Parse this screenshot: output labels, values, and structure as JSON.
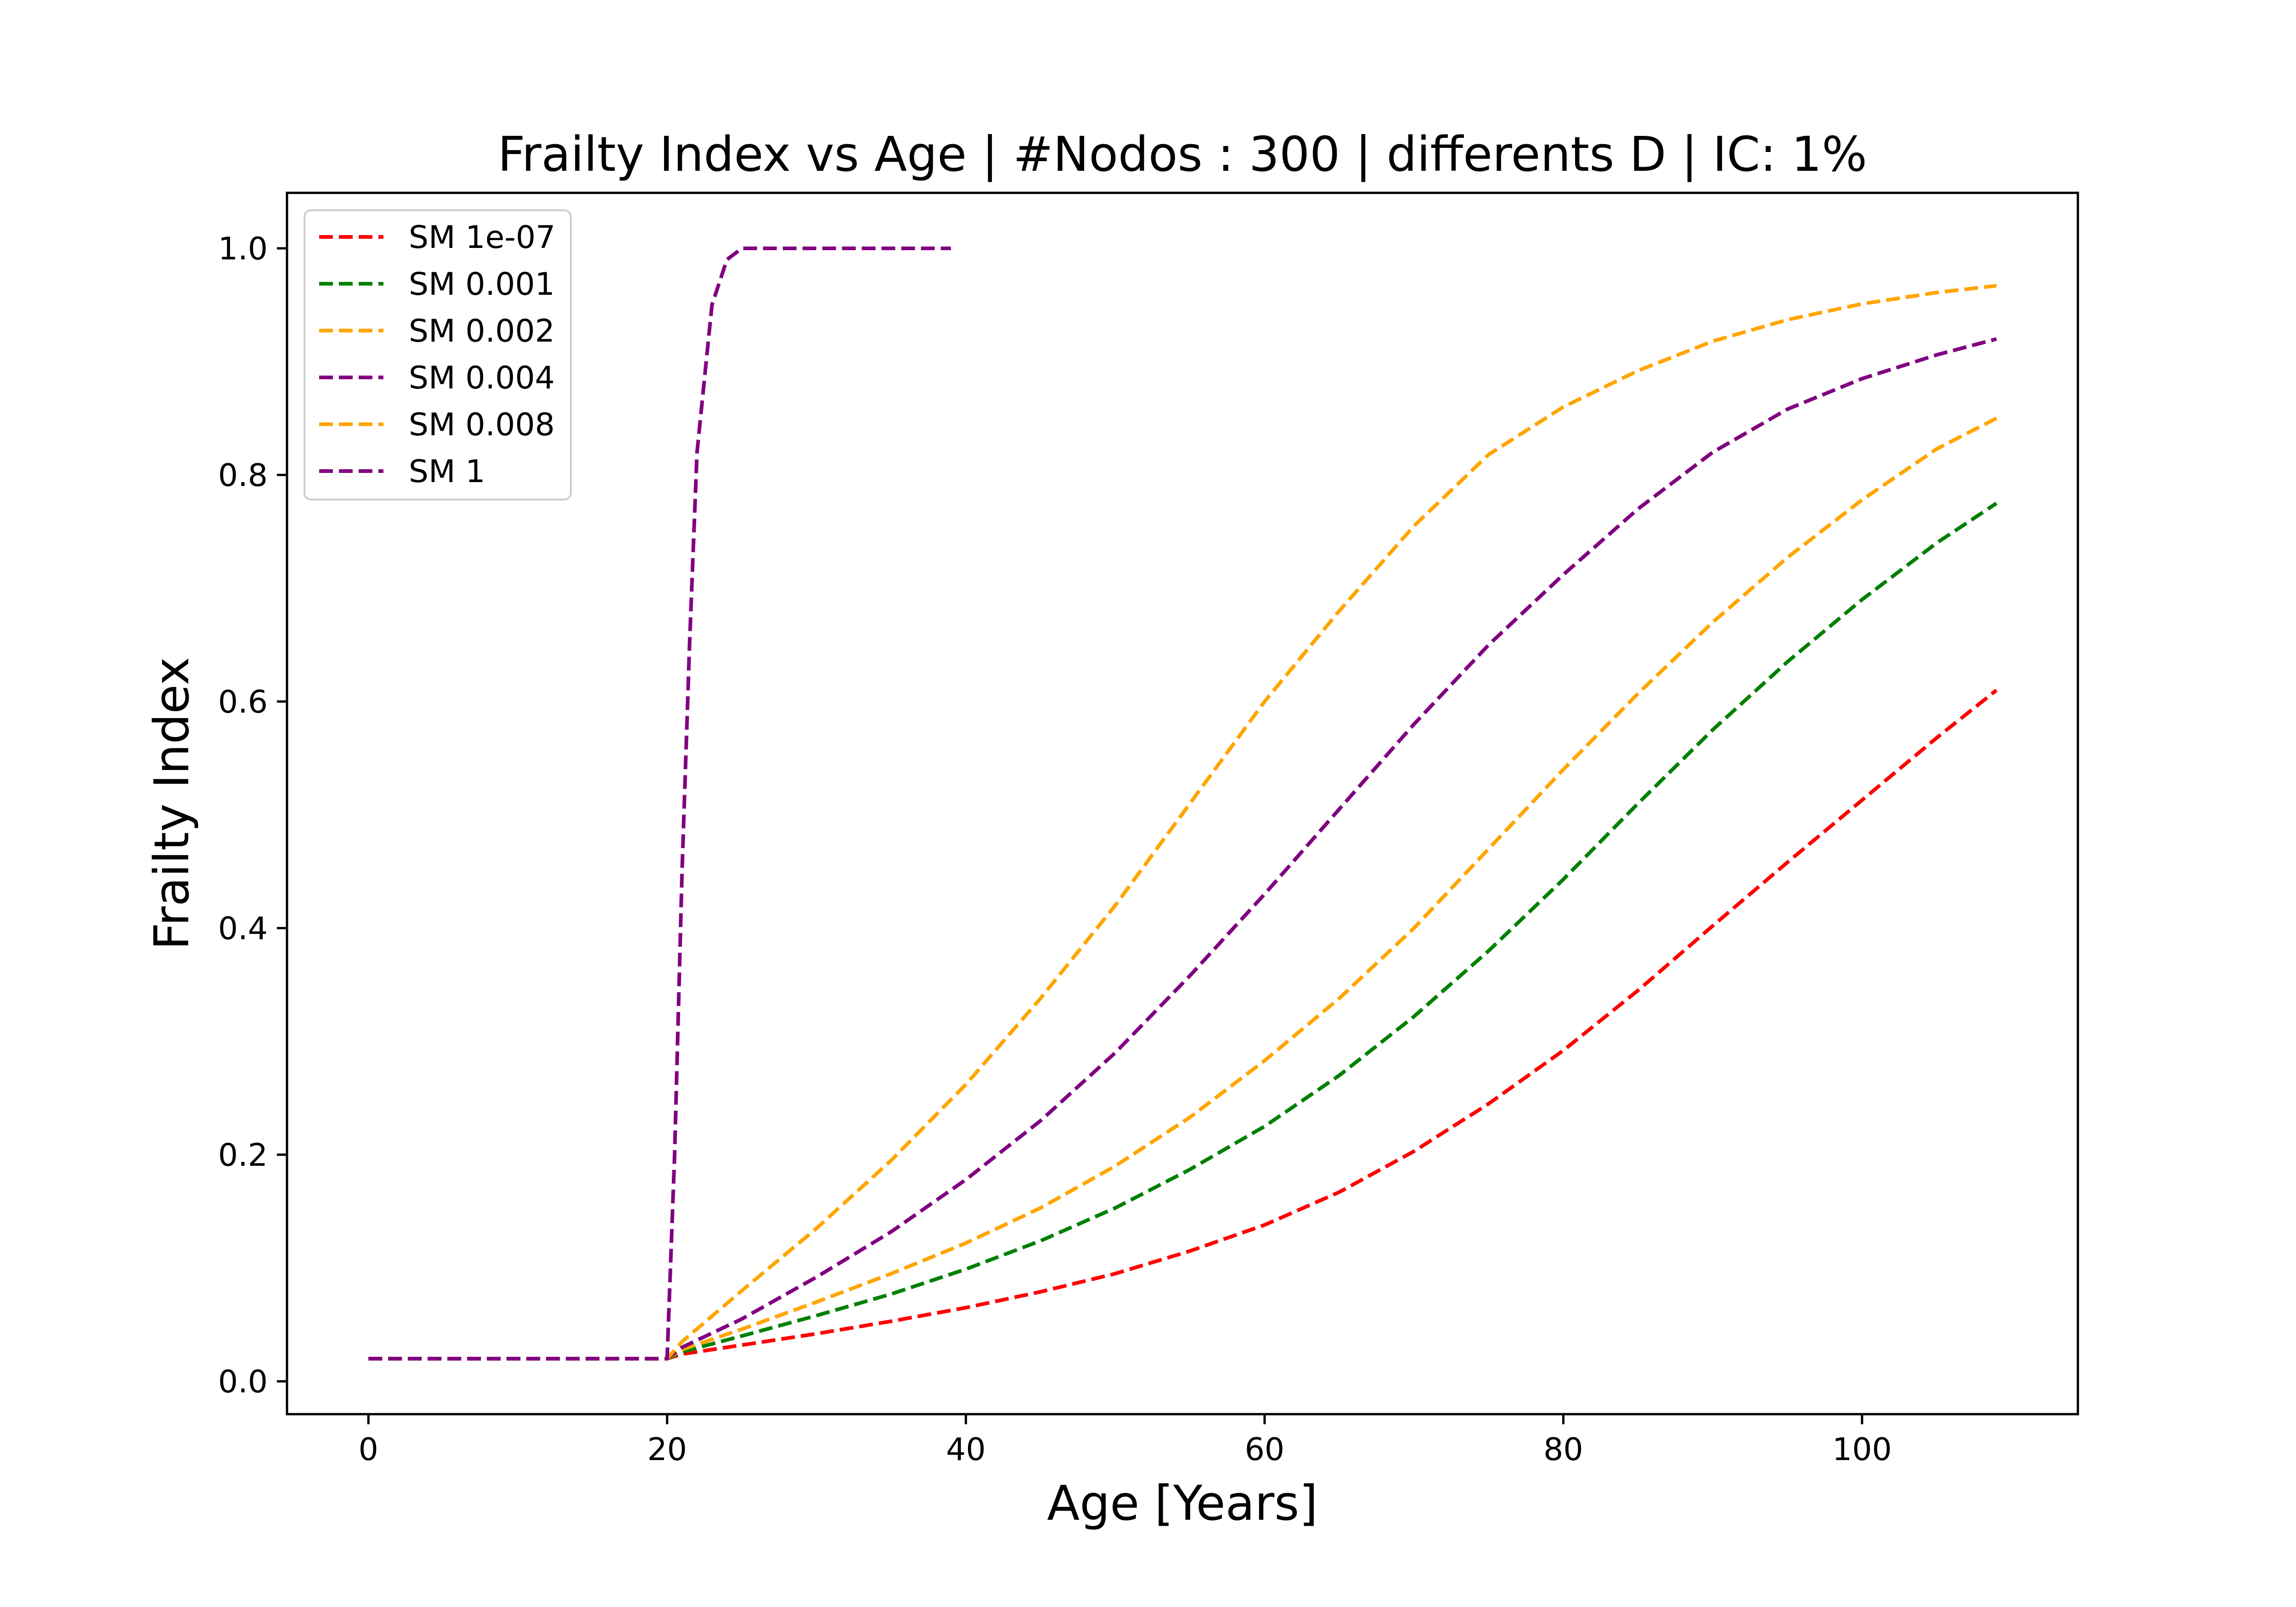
{
  "chart_data": {
    "type": "line",
    "title": "Frailty Index vs Age | #Nodos : 300 | differents D | IC: 1%",
    "xlabel": "Age [Years]",
    "ylabel": "Frailty Index",
    "xlim": [
      -5.45,
      114.45
    ],
    "ylim": [
      -0.029,
      1.049
    ],
    "x_ticks": [
      0,
      20,
      40,
      60,
      80,
      100
    ],
    "y_ticks": [
      0.0,
      0.2,
      0.4,
      0.6,
      0.8,
      1.0
    ],
    "x_tick_labels": [
      "0",
      "20",
      "40",
      "60",
      "80",
      "100"
    ],
    "y_tick_labels": [
      "0.0",
      "0.2",
      "0.4",
      "0.6",
      "0.8",
      "1.0"
    ],
    "grid": false,
    "legend_position": "top-left",
    "line_style": "dashed",
    "series": [
      {
        "name": "SM 1e-07",
        "color": "#ff0000",
        "x": [
          0,
          20,
          21,
          25,
          30,
          35,
          40,
          45,
          50,
          55,
          60,
          65,
          70,
          75,
          80,
          85,
          90,
          95,
          100,
          105,
          109
        ],
        "y": [
          0.02,
          0.02,
          0.024,
          0.032,
          0.042,
          0.053,
          0.065,
          0.079,
          0.095,
          0.115,
          0.138,
          0.167,
          0.203,
          0.245,
          0.292,
          0.345,
          0.402,
          0.458,
          0.513,
          0.568,
          0.61
        ]
      },
      {
        "name": "SM 0.001",
        "color": "#008000",
        "x": [
          0,
          20,
          21,
          25,
          30,
          35,
          40,
          45,
          50,
          55,
          60,
          65,
          70,
          75,
          80,
          85,
          90,
          95,
          100,
          105,
          109
        ],
        "y": [
          0.02,
          0.02,
          0.026,
          0.04,
          0.058,
          0.077,
          0.099,
          0.124,
          0.153,
          0.187,
          0.225,
          0.27,
          0.322,
          0.38,
          0.443,
          0.51,
          0.575,
          0.635,
          0.69,
          0.74,
          0.775
        ]
      },
      {
        "name": "SM 0.002",
        "color": "#ffa500",
        "x": [
          0,
          20,
          21,
          25,
          30,
          35,
          40,
          45,
          50,
          55,
          60,
          65,
          70,
          75,
          80,
          85,
          90,
          95,
          100,
          105,
          109
        ],
        "y": [
          0.02,
          0.02,
          0.028,
          0.046,
          0.07,
          0.095,
          0.122,
          0.153,
          0.19,
          0.233,
          0.283,
          0.338,
          0.4,
          0.47,
          0.54,
          0.607,
          0.67,
          0.727,
          0.778,
          0.823,
          0.85
        ]
      },
      {
        "name": "SM 0.004",
        "color": "#800080",
        "x": [
          0,
          20,
          21,
          25,
          30,
          35,
          40,
          45,
          50,
          55,
          60,
          65,
          70,
          75,
          80,
          85,
          90,
          95,
          100,
          105,
          109
        ],
        "y": [
          0.02,
          0.02,
          0.03,
          0.055,
          0.092,
          0.132,
          0.178,
          0.23,
          0.29,
          0.358,
          0.43,
          0.505,
          0.58,
          0.65,
          0.712,
          0.77,
          0.82,
          0.858,
          0.885,
          0.906,
          0.92
        ]
      },
      {
        "name": "SM 0.008",
        "color": "#ffa500",
        "x": [
          0,
          20,
          21,
          25,
          30,
          35,
          40,
          45,
          50,
          55,
          60,
          65,
          70,
          75,
          80,
          85,
          90,
          95,
          100,
          105,
          109
        ],
        "y": [
          0.02,
          0.02,
          0.035,
          0.08,
          0.135,
          0.195,
          0.262,
          0.338,
          0.42,
          0.51,
          0.6,
          0.68,
          0.755,
          0.818,
          0.86,
          0.892,
          0.918,
          0.937,
          0.951,
          0.961,
          0.967
        ]
      },
      {
        "name": "SM 1",
        "color": "#800080",
        "x": [
          0,
          20,
          20.5,
          21,
          21.5,
          22,
          23,
          24,
          25,
          26,
          30,
          35,
          39
        ],
        "y": [
          0.02,
          0.02,
          0.2,
          0.45,
          0.65,
          0.82,
          0.95,
          0.99,
          1.0,
          1.0,
          1.0,
          1.0,
          1.0
        ]
      }
    ]
  }
}
